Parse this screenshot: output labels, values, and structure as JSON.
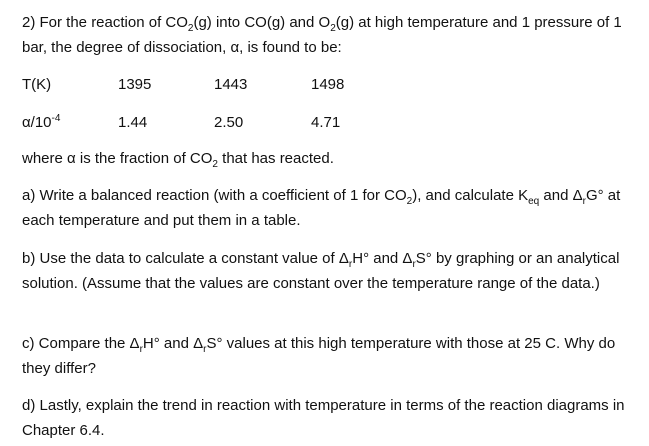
{
  "question": {
    "intro": [
      {
        "text": "2) For the reaction of CO"
      },
      {
        "sub": "2"
      },
      {
        "text": "(g) into CO(g) and O"
      },
      {
        "sub": "2"
      },
      {
        "text": "(g) at high temperature and 1 pressure of 1 bar, the degree of dissociation, α, is found to be:"
      }
    ],
    "table": {
      "rows": [
        {
          "label": [
            {
              "text": "T(K)"
            }
          ],
          "cells": [
            "1395",
            "1443",
            "1498"
          ]
        },
        {
          "label": [
            {
              "text": "α/10"
            },
            {
              "sup": "-4"
            }
          ],
          "cells": [
            "1.44",
            "2.50",
            "4.71"
          ]
        }
      ]
    },
    "note": [
      {
        "text": "where α is the fraction of CO"
      },
      {
        "sub": "2"
      },
      {
        "text": " that has reacted."
      }
    ],
    "parts": [
      [
        {
          "text": "a) Write a balanced reaction (with a coefficient of 1 for CO"
        },
        {
          "sub": "2"
        },
        {
          "text": "), and calculate K"
        },
        {
          "sub": "eq"
        },
        {
          "text": " and Δ"
        },
        {
          "sub": "r"
        },
        {
          "text": "G° at each temperature and put them in a table."
        }
      ],
      [
        {
          "text": "b) Use the data to calculate a constant value of Δ"
        },
        {
          "sub": "r"
        },
        {
          "text": "H° and Δ"
        },
        {
          "sub": "r"
        },
        {
          "text": "S°  by graphing or an analytical solution. (Assume that the values are constant over the temperature range of the data.)"
        }
      ],
      [
        {
          "text": "c) Compare the Δ"
        },
        {
          "sub": "r"
        },
        {
          "text": "H° and Δ"
        },
        {
          "sub": "r"
        },
        {
          "text": "S° values at this high temperature with those at 25 C.  Why do they differ?"
        }
      ],
      [
        {
          "text": "d) Lastly, explain the trend in reaction with temperature in terms of the reaction diagrams in Chapter 6.4."
        }
      ]
    ]
  }
}
